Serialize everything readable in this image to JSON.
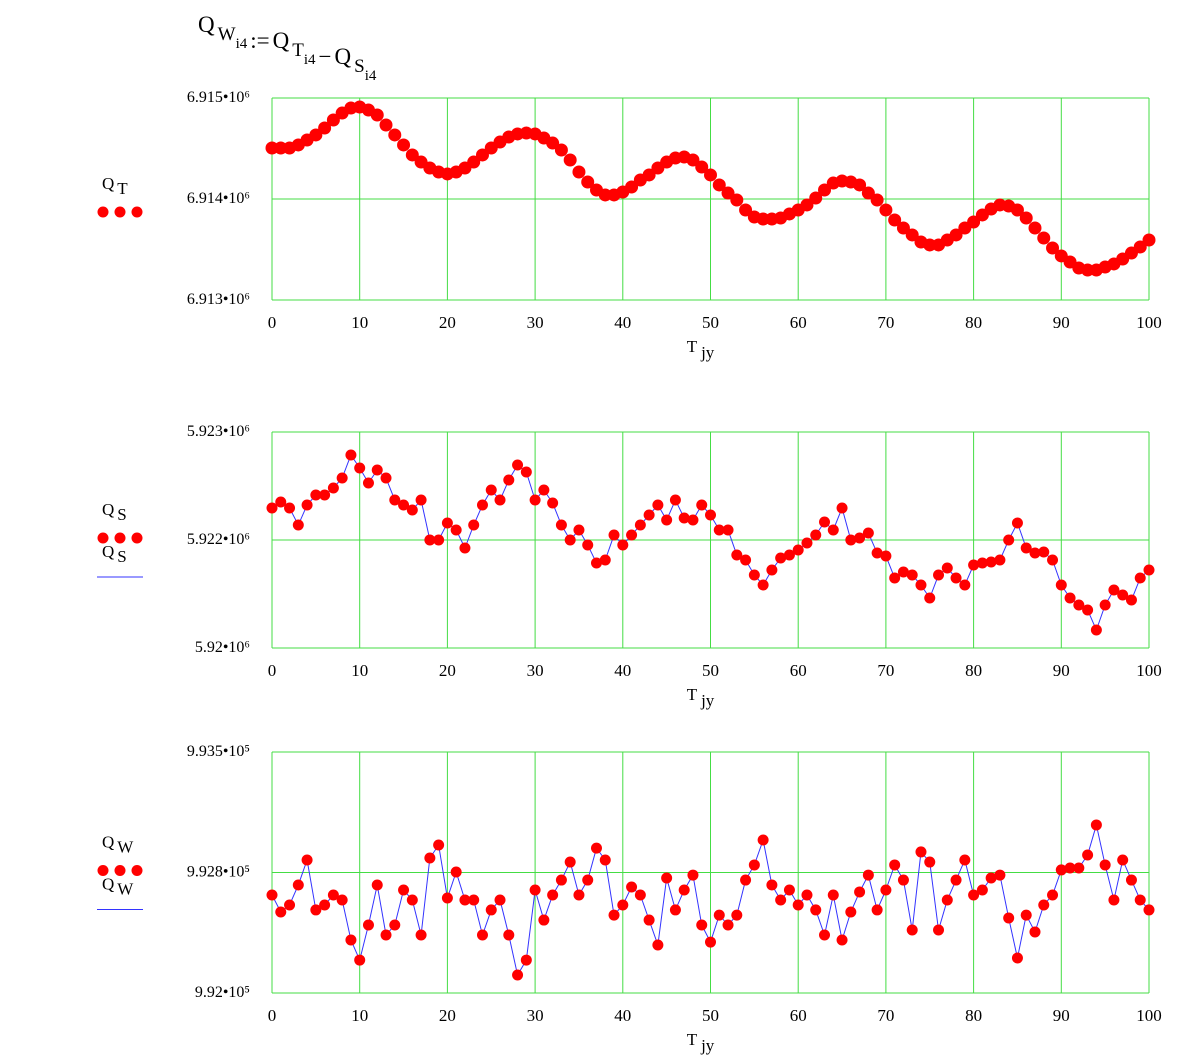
{
  "equation": [
    {
      "base": "Q",
      "sub": "W",
      "index": "i4"
    },
    {
      "op": ":="
    },
    {
      "base": "Q",
      "sub": "T",
      "index": "i4"
    },
    {
      "op": "−"
    },
    {
      "base": "Q",
      "sub": "S",
      "index": "i4"
    }
  ],
  "chart_data": [
    {
      "type": "scatter",
      "x_label": "T",
      "x_label_sub": "jy",
      "xlim": [
        0,
        100
      ],
      "xticks": [
        0,
        10,
        20,
        30,
        40,
        50,
        60,
        70,
        80,
        90,
        100
      ],
      "ylim": [
        6913000,
        6915000
      ],
      "yticks": [
        {
          "value": 6913000,
          "label": "6.913•10⁶"
        },
        {
          "value": 6914000,
          "label": "6.914•10⁶"
        },
        {
          "value": 6915000,
          "label": "6.915•10⁶"
        }
      ],
      "grid": true,
      "grid_color": "#44dd44",
      "x": [
        0,
        1,
        2,
        3,
        4,
        5,
        6,
        7,
        8,
        9,
        10,
        11,
        12,
        13,
        14,
        15,
        16,
        17,
        18,
        19,
        20,
        21,
        22,
        23,
        24,
        25,
        26,
        27,
        28,
        29,
        30,
        31,
        32,
        33,
        34,
        35,
        36,
        37,
        38,
        39,
        40,
        41,
        42,
        43,
        44,
        45,
        46,
        47,
        48,
        49,
        50,
        51,
        52,
        53,
        54,
        55,
        56,
        57,
        58,
        59,
        60,
        61,
        62,
        63,
        64,
        65,
        66,
        67,
        68,
        69,
        70,
        71,
        72,
        73,
        74,
        75,
        76,
        77,
        78,
        79,
        80,
        81,
        82,
        83,
        84,
        85,
        86,
        87,
        88,
        89,
        90,
        91,
        92,
        93,
        94,
        95,
        96,
        97,
        98,
        99,
        100
      ],
      "series": [
        {
          "name": "Q",
          "sub": "T",
          "color": "#ff0000",
          "values": [
            6914505,
            6914505,
            6914505,
            6914535,
            6914584,
            6914634,
            6914703,
            6914782,
            6914851,
            6914901,
            6914911,
            6914881,
            6914832,
            6914733,
            6914634,
            6914535,
            6914436,
            6914366,
            6914307,
            6914267,
            6914248,
            6914267,
            6914307,
            6914366,
            6914436,
            6914505,
            6914564,
            6914614,
            6914644,
            6914653,
            6914644,
            6914604,
            6914554,
            6914485,
            6914386,
            6914267,
            6914168,
            6914089,
            6914040,
            6914040,
            6914069,
            6914119,
            6914188,
            6914238,
            6914307,
            6914366,
            6914406,
            6914416,
            6914386,
            6914317,
            6914238,
            6914139,
            6914059,
            6913990,
            6913891,
            6913822,
            6913802,
            6913802,
            6913812,
            6913852,
            6913891,
            6913941,
            6914010,
            6914089,
            6914158,
            6914178,
            6914168,
            6914139,
            6914059,
            6913990,
            6913891,
            6913792,
            6913713,
            6913644,
            6913574,
            6913545,
            6913545,
            6913594,
            6913644,
            6913713,
            6913772,
            6913842,
            6913901,
            6913941,
            6913931,
            6913891,
            6913812,
            6913713,
            6913614,
            6913515,
            6913436,
            6913376,
            6913317,
            6913297,
            6913297,
            6913327,
            6913357,
            6913406,
            6913465,
            6913525,
            6913594
          ]
        }
      ]
    },
    {
      "type": "scatter",
      "x_label": "T",
      "x_label_sub": "jy",
      "xlim": [
        0,
        100
      ],
      "xticks": [
        0,
        10,
        20,
        30,
        40,
        50,
        60,
        70,
        80,
        90,
        100
      ],
      "ylim": [
        5920000,
        5923000
      ],
      "yticks": [
        {
          "value": 5920000,
          "label": "5.92•10⁶"
        },
        {
          "value": 5921500,
          "label": "5.922•10⁶"
        },
        {
          "value": 5923000,
          "label": "5.923•10⁶"
        }
      ],
      "grid": true,
      "grid_color": "#44dd44",
      "x": [
        0,
        1,
        2,
        3,
        4,
        5,
        6,
        7,
        8,
        9,
        10,
        11,
        12,
        13,
        14,
        15,
        16,
        17,
        18,
        19,
        20,
        21,
        22,
        23,
        24,
        25,
        26,
        27,
        28,
        29,
        30,
        31,
        32,
        33,
        34,
        35,
        36,
        37,
        38,
        39,
        40,
        41,
        42,
        43,
        44,
        45,
        46,
        47,
        48,
        49,
        50,
        51,
        52,
        53,
        54,
        55,
        56,
        57,
        58,
        59,
        60,
        61,
        62,
        63,
        64,
        65,
        66,
        67,
        68,
        69,
        70,
        71,
        72,
        73,
        74,
        75,
        76,
        77,
        78,
        79,
        80,
        81,
        82,
        83,
        84,
        85,
        86,
        87,
        88,
        89,
        90,
        91,
        92,
        93,
        94,
        95,
        96,
        97,
        98,
        99,
        100
      ],
      "series": [
        {
          "name": "Q",
          "sub": "S",
          "color": "#ff0000",
          "line_color": "#3333ff",
          "values": [
            5921944,
            5922028,
            5921944,
            5921708,
            5921986,
            5922125,
            5922125,
            5922222,
            5922361,
            5922681,
            5922500,
            5922292,
            5922472,
            5922361,
            5922055,
            5921986,
            5921917,
            5922055,
            5921500,
            5921500,
            5921736,
            5921639,
            5921389,
            5921708,
            5921986,
            5922194,
            5922055,
            5922333,
            5922542,
            5922444,
            5922055,
            5922194,
            5922014,
            5921708,
            5921500,
            5921639,
            5921430,
            5921180,
            5921222,
            5921569,
            5921430,
            5921569,
            5921708,
            5921847,
            5921986,
            5921778,
            5922055,
            5921805,
            5921778,
            5921986,
            5921847,
            5921639,
            5921639,
            5921292,
            5921222,
            5921014,
            5920875,
            5921083,
            5921250,
            5921292,
            5921361,
            5921458,
            5921569,
            5921750,
            5921639,
            5921944,
            5921500,
            5921528,
            5921597,
            5921319,
            5921278,
            5920972,
            5921055,
            5921014,
            5920875,
            5920694,
            5921014,
            5921111,
            5920972,
            5920875,
            5921153,
            5921180,
            5921194,
            5921222,
            5921500,
            5921736,
            5921389,
            5921319,
            5921333,
            5921222,
            5920875,
            5920694,
            5920597,
            5920528,
            5920250,
            5920597,
            5920805,
            5920736,
            5920666,
            5920972,
            5921083
          ]
        }
      ]
    },
    {
      "type": "scatter",
      "x_label": "T",
      "x_label_sub": "jy",
      "xlim": [
        0,
        100
      ],
      "xticks": [
        0,
        10,
        20,
        30,
        40,
        50,
        60,
        70,
        80,
        90,
        100
      ],
      "ylim": [
        992000,
        993500
      ],
      "yticks": [
        {
          "value": 992000,
          "label": "9.92•10⁵"
        },
        {
          "value": 992750,
          "label": "9.928•10⁵"
        },
        {
          "value": 993500,
          "label": "9.935•10⁵"
        }
      ],
      "grid": true,
      "grid_color": "#44dd44",
      "x": [
        0,
        1,
        2,
        3,
        4,
        5,
        6,
        7,
        8,
        9,
        10,
        11,
        12,
        13,
        14,
        15,
        16,
        17,
        18,
        19,
        20,
        21,
        22,
        23,
        24,
        25,
        26,
        27,
        28,
        29,
        30,
        31,
        32,
        33,
        34,
        35,
        36,
        37,
        38,
        39,
        40,
        41,
        42,
        43,
        44,
        45,
        46,
        47,
        48,
        49,
        50,
        51,
        52,
        53,
        54,
        55,
        56,
        57,
        58,
        59,
        60,
        61,
        62,
        63,
        64,
        65,
        66,
        67,
        68,
        69,
        70,
        71,
        72,
        73,
        74,
        75,
        76,
        77,
        78,
        79,
        80,
        81,
        82,
        83,
        84,
        85,
        86,
        87,
        88,
        89,
        90,
        91,
        92,
        93,
        94,
        95,
        96,
        97,
        98,
        99,
        100
      ],
      "series": [
        {
          "name": "Q",
          "sub": "W",
          "color": "#ff0000",
          "line_color": "#3333ff",
          "values": [
            992610,
            992504,
            992548,
            992672,
            992828,
            992517,
            992548,
            992610,
            992579,
            992330,
            992205,
            992423,
            992672,
            992361,
            992423,
            992641,
            992579,
            992361,
            992840,
            992921,
            992591,
            992753,
            992579,
            992579,
            992361,
            992517,
            992579,
            992361,
            992112,
            992205,
            992641,
            992454,
            992610,
            992703,
            992815,
            992610,
            992703,
            992902,
            992828,
            992485,
            992548,
            992660,
            992610,
            992454,
            992299,
            992716,
            992517,
            992641,
            992734,
            992423,
            992317,
            992485,
            992423,
            992485,
            992703,
            992797,
            992952,
            992672,
            992579,
            992641,
            992548,
            992610,
            992517,
            992361,
            992610,
            992330,
            992504,
            992629,
            992734,
            992517,
            992641,
            992797,
            992703,
            992392,
            992878,
            992815,
            992392,
            992579,
            992703,
            992828,
            992610,
            992641,
            992716,
            992734,
            992467,
            992218,
            992485,
            992380,
            992548,
            992610,
            992766,
            992778,
            992778,
            992859,
            993046,
            992797,
            992579,
            992828,
            992703,
            992579,
            992517
          ]
        }
      ]
    }
  ]
}
